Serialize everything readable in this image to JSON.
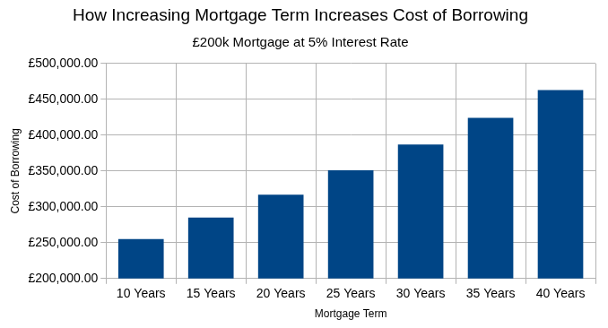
{
  "chart_data": {
    "type": "bar",
    "title": "How Increasing Mortgage Term Increases Cost of Borrowing",
    "subtitle": "£200k Mortgage at 5% Interest Rate",
    "x_label": "Mortgage Term",
    "y_label": "Cost of Borrowing",
    "categories": [
      "10 Years",
      "15 Years",
      "20 Years",
      "25 Years",
      "30 Years",
      "35 Years",
      "40 Years"
    ],
    "values": [
      255000,
      285000,
      317000,
      351000,
      387000,
      424000,
      463000
    ],
    "color": "#004586",
    "ylim": [
      200000,
      500000
    ],
    "yticks": [
      {
        "value": 200000,
        "label": "£200,000.00"
      },
      {
        "value": 250000,
        "label": "£250,000.00"
      },
      {
        "value": 300000,
        "label": "£300,000.00"
      },
      {
        "value": 350000,
        "label": "£350,000.00"
      },
      {
        "value": 400000,
        "label": "£400,000.00"
      },
      {
        "value": 450000,
        "label": "£450,000.00"
      },
      {
        "value": 500000,
        "label": "£500,000.00"
      }
    ],
    "grid": true
  }
}
